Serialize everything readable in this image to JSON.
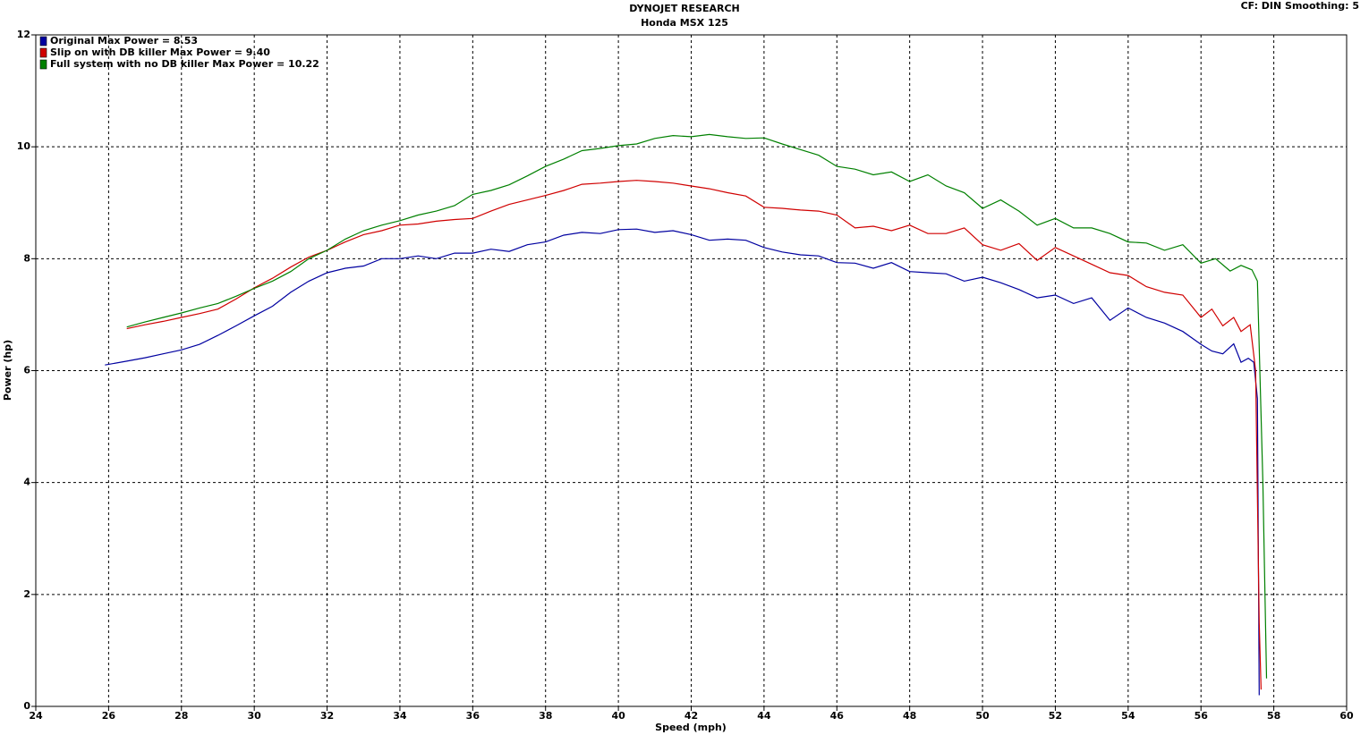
{
  "chart_data": {
    "type": "line",
    "title": "DYNOJET RESEARCH",
    "subtitle": "Honda MSX 125",
    "annotation": "CF: DIN  Smoothing: 5",
    "x_label": "Speed (mph)",
    "y_label": "Power (hp)",
    "xlim": [
      24,
      60
    ],
    "xticks": [
      24,
      26,
      28,
      30,
      32,
      34,
      36,
      38,
      40,
      42,
      44,
      46,
      48,
      50,
      52,
      54,
      56,
      58,
      60
    ],
    "ylim": [
      0,
      12
    ],
    "yticks": [
      0,
      2,
      4,
      6,
      8,
      10,
      12
    ],
    "grid": true,
    "legend": "upper left",
    "series": [
      {
        "name": "Original Max Power = 8.53",
        "color": "#0000a0",
        "x": [
          25.9,
          26.5,
          27,
          27.5,
          28,
          28.5,
          29,
          29.5,
          30,
          30.5,
          31,
          31.5,
          32,
          32.5,
          33,
          33.5,
          34,
          34.5,
          35,
          35.5,
          36,
          36.5,
          37,
          37.5,
          38,
          38.5,
          39,
          39.5,
          40,
          40.5,
          41,
          41.5,
          42,
          42.5,
          43,
          43.5,
          44,
          44.5,
          45,
          45.5,
          46,
          46.5,
          47,
          47.5,
          48,
          48.5,
          49,
          49.5,
          50,
          50.5,
          51,
          51.5,
          52,
          52.5,
          53,
          53.5,
          54,
          54.5,
          55,
          55.5,
          56,
          56.3,
          56.6,
          56.9,
          57.1,
          57.3,
          57.45,
          57.55,
          57.6
        ],
        "values": [
          6.1,
          6.17,
          6.23,
          6.3,
          6.37,
          6.47,
          6.63,
          6.8,
          6.98,
          7.15,
          7.4,
          7.6,
          7.75,
          7.83,
          7.87,
          8.0,
          8.0,
          8.05,
          8.0,
          8.1,
          8.1,
          8.17,
          8.13,
          8.25,
          8.3,
          8.42,
          8.47,
          8.45,
          8.52,
          8.53,
          8.47,
          8.5,
          8.43,
          8.33,
          8.35,
          8.33,
          8.2,
          8.12,
          8.07,
          8.05,
          7.93,
          7.92,
          7.83,
          7.93,
          7.77,
          7.75,
          7.73,
          7.6,
          7.67,
          7.57,
          7.45,
          7.3,
          7.35,
          7.2,
          7.3,
          6.9,
          7.12,
          6.95,
          6.85,
          6.7,
          6.47,
          6.35,
          6.3,
          6.48,
          6.15,
          6.22,
          6.15,
          5.5,
          0.2
        ]
      },
      {
        "name": "Slip on with DB killer Max Power = 9.40",
        "color": "#d00000",
        "x": [
          26.5,
          27,
          27.5,
          28,
          28.5,
          29,
          29.5,
          30,
          30.5,
          31,
          31.5,
          32,
          32.5,
          33,
          33.5,
          34,
          34.5,
          35,
          35.5,
          36,
          36.5,
          37,
          37.5,
          38,
          38.5,
          39,
          39.5,
          40,
          40.5,
          41,
          41.5,
          42,
          42.5,
          43,
          43.5,
          44,
          44.5,
          45,
          45.5,
          46,
          46.5,
          47,
          47.5,
          48,
          48.5,
          49,
          49.5,
          50,
          50.5,
          51,
          51.5,
          52,
          52.5,
          53,
          53.5,
          54,
          54.5,
          55,
          55.5,
          56,
          56.3,
          56.6,
          56.9,
          57.1,
          57.35,
          57.5,
          57.6,
          57.65
        ],
        "values": [
          6.75,
          6.82,
          6.88,
          6.95,
          7.02,
          7.1,
          7.28,
          7.48,
          7.65,
          7.85,
          8.03,
          8.15,
          8.3,
          8.43,
          8.5,
          8.6,
          8.62,
          8.67,
          8.7,
          8.72,
          8.85,
          8.97,
          9.05,
          9.13,
          9.22,
          9.33,
          9.35,
          9.38,
          9.4,
          9.38,
          9.35,
          9.3,
          9.25,
          9.18,
          9.12,
          8.92,
          8.9,
          8.87,
          8.85,
          8.78,
          8.55,
          8.58,
          8.5,
          8.6,
          8.45,
          8.45,
          8.55,
          8.25,
          8.15,
          8.27,
          7.97,
          8.2,
          8.05,
          7.9,
          7.75,
          7.7,
          7.5,
          7.4,
          7.35,
          6.95,
          7.1,
          6.8,
          6.95,
          6.7,
          6.82,
          6.0,
          1.5,
          0.3
        ]
      },
      {
        "name": "Full system with no DB killer Max Power = 10.22",
        "color": "#008000",
        "x": [
          26.5,
          27,
          27.5,
          28,
          28.5,
          29,
          29.5,
          30,
          30.5,
          31,
          31.5,
          32,
          32.5,
          33,
          33.5,
          34,
          34.5,
          35,
          35.5,
          36,
          36.5,
          37,
          37.5,
          38,
          38.5,
          39,
          39.5,
          40,
          40.5,
          41,
          41.5,
          42,
          42.5,
          43,
          43.5,
          44,
          44.5,
          45,
          45.5,
          46,
          46.5,
          47,
          47.5,
          48,
          48.5,
          49,
          49.5,
          50,
          50.5,
          51,
          51.5,
          52,
          52.5,
          53,
          53.5,
          54,
          54.5,
          55,
          55.5,
          56,
          56.4,
          56.8,
          57.1,
          57.4,
          57.55,
          57.7,
          57.8
        ],
        "values": [
          6.78,
          6.87,
          6.95,
          7.03,
          7.12,
          7.2,
          7.33,
          7.47,
          7.6,
          7.77,
          8.0,
          8.15,
          8.35,
          8.5,
          8.6,
          8.68,
          8.78,
          8.85,
          8.95,
          9.15,
          9.22,
          9.32,
          9.48,
          9.65,
          9.78,
          9.93,
          9.97,
          10.02,
          10.05,
          10.15,
          10.2,
          10.18,
          10.22,
          10.18,
          10.15,
          10.16,
          10.05,
          9.95,
          9.85,
          9.65,
          9.6,
          9.5,
          9.55,
          9.38,
          9.5,
          9.3,
          9.18,
          8.9,
          9.05,
          8.85,
          8.6,
          8.72,
          8.55,
          8.55,
          8.45,
          8.3,
          8.28,
          8.15,
          8.25,
          7.92,
          8.0,
          7.78,
          7.88,
          7.8,
          7.6,
          4.0,
          0.5
        ]
      }
    ]
  }
}
